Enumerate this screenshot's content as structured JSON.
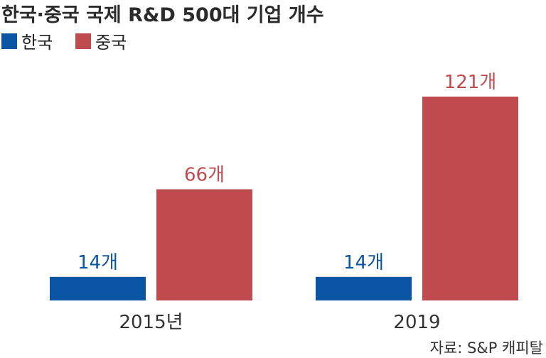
{
  "chart_data": {
    "type": "bar",
    "title": "한국·중국 국제 R&D 500대 기업 개수",
    "categories": [
      "2015년",
      "2019"
    ],
    "series": [
      {
        "name": "한국",
        "color": "#0a55a4",
        "values": [
          14,
          14
        ],
        "labels": [
          "14개",
          "14개"
        ]
      },
      {
        "name": "중국",
        "color": "#bf4b4e",
        "values": [
          66,
          121
        ],
        "labels": [
          "66개",
          "121개"
        ]
      }
    ],
    "ylim": [
      0,
      121
    ],
    "grid": false,
    "legend_position": "top-left",
    "source": "자료: S&P 캐피탈"
  }
}
